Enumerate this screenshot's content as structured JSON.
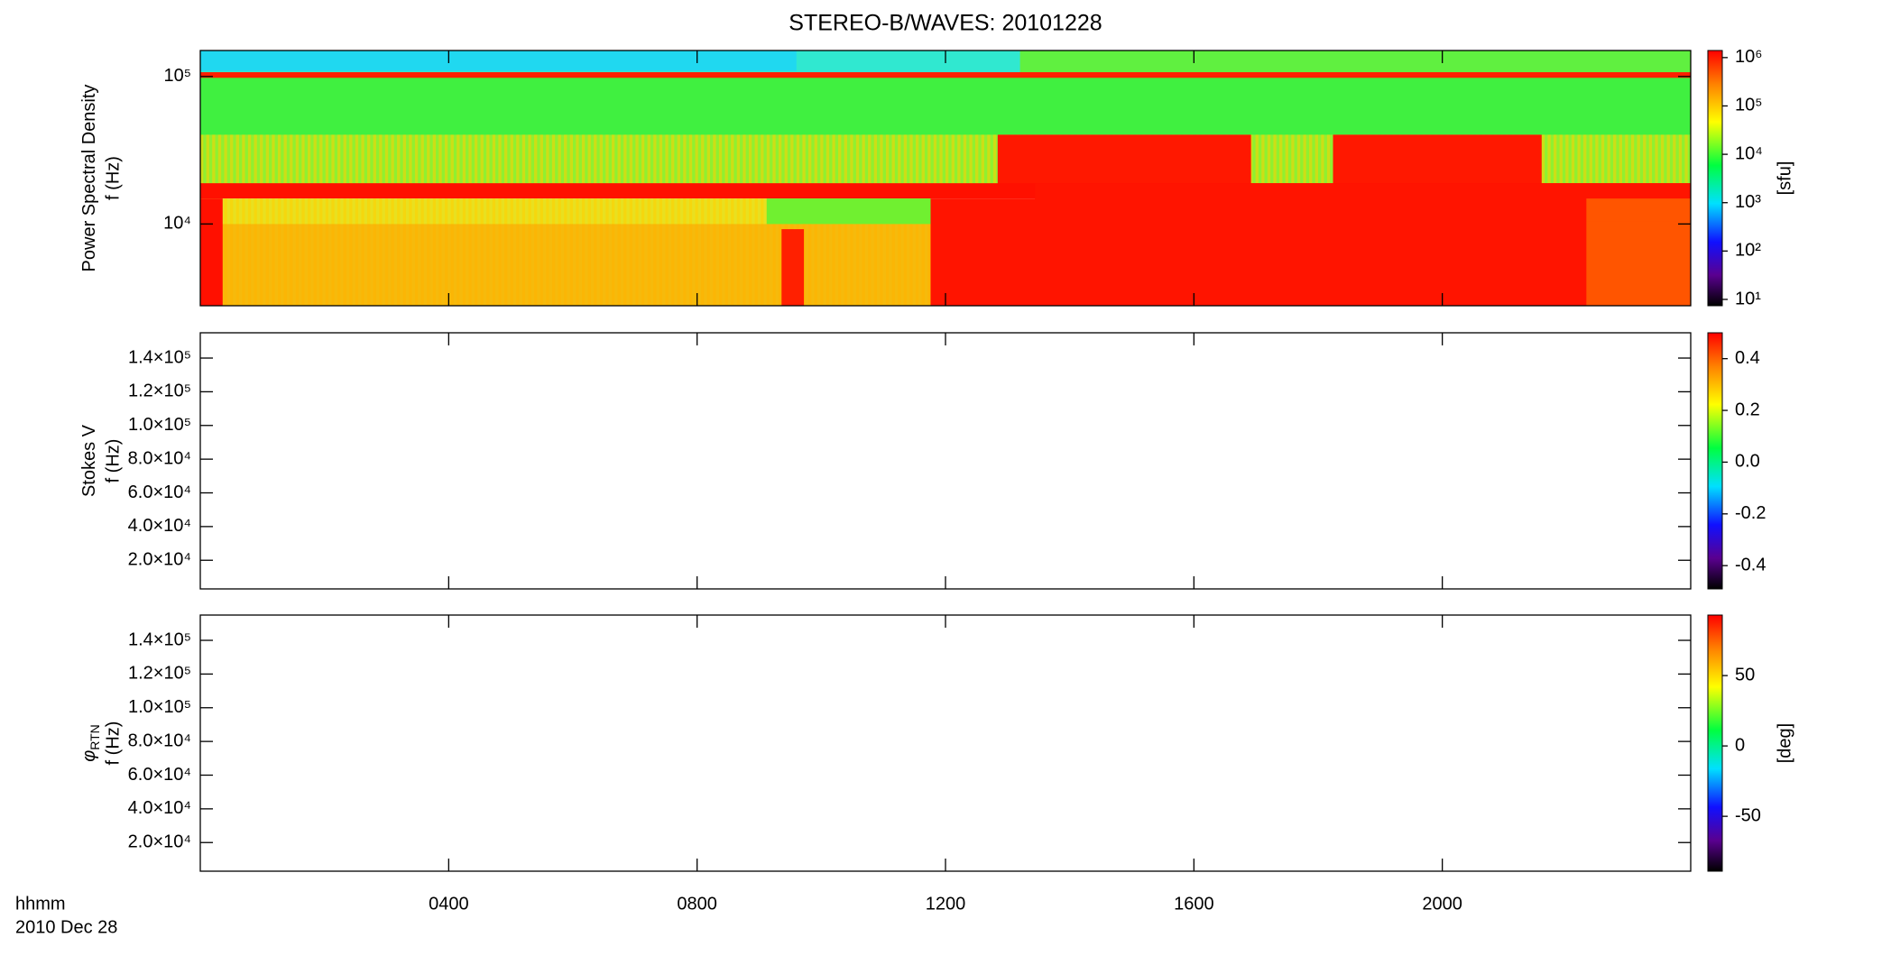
{
  "chart_data": {
    "type": "spectrogram",
    "title": "STEREO-B/WAVES: 20101228",
    "xlim": [
      0,
      24
    ],
    "xticks": [
      {
        "value": 4,
        "label": "0400"
      },
      {
        "value": 8,
        "label": "0800"
      },
      {
        "value": 12,
        "label": "1200"
      },
      {
        "value": 16,
        "label": "1600"
      },
      {
        "value": 20,
        "label": "2000"
      }
    ],
    "xlabel": "hhmm",
    "date": "2010 Dec 28",
    "panels": [
      {
        "ylabel": "Power Spectral Density",
        "ylabel2": "f (Hz)",
        "log_y": true,
        "ylim": [
          2790,
          150000
        ],
        "yticks": [
          {
            "value": 10000,
            "label": "10⁴"
          },
          {
            "value": 100000,
            "label": "10⁵"
          }
        ],
        "colorbar": {
          "log": true,
          "lim": [
            7.4,
            1400000
          ],
          "unit": "[sfu]",
          "ticks": [
            {
              "value": 10,
              "label": "10¹"
            },
            {
              "value": 100,
              "label": "10²"
            },
            {
              "value": 1000,
              "label": "10³"
            },
            {
              "value": 10000,
              "label": "10⁴"
            },
            {
              "value": 100000,
              "label": "10⁵"
            },
            {
              "value": 1000000,
              "label": "10⁶"
            }
          ]
        }
      },
      {
        "ylabel": "Stokes V",
        "ylabel2": "f (Hz)",
        "log_y": false,
        "ylim": [
          3000,
          155000
        ],
        "yticks": [
          {
            "value": 20000,
            "label": "2.0×10⁴"
          },
          {
            "value": 40000,
            "label": "4.0×10⁴"
          },
          {
            "value": 60000,
            "label": "6.0×10⁴"
          },
          {
            "value": 80000,
            "label": "8.0×10⁴"
          },
          {
            "value": 100000,
            "label": "1.0×10⁵"
          },
          {
            "value": 120000,
            "label": "1.2×10⁵"
          },
          {
            "value": 140000,
            "label": "1.4×10⁵"
          }
        ],
        "colorbar": {
          "log": false,
          "lim": [
            -0.49,
            0.5
          ],
          "ticks": [
            -0.4,
            -0.2,
            {
              "value": 0,
              "label": "0.0"
            },
            0.2,
            0.4
          ]
        }
      },
      {
        "ylabel": "φ",
        "ylabel_sub": "RTN",
        "ylabel2": "f (Hz)",
        "log_y": false,
        "ylim": [
          3000,
          155000
        ],
        "yticks": [
          {
            "value": 20000,
            "label": "2.0×10⁴"
          },
          {
            "value": 40000,
            "label": "4.0×10⁴"
          },
          {
            "value": 60000,
            "label": "6.0×10⁴"
          },
          {
            "value": 80000,
            "label": "8.0×10⁴"
          },
          {
            "value": 100000,
            "label": "1.0×10⁵"
          },
          {
            "value": 120000,
            "label": "1.2×10⁵"
          },
          {
            "value": 140000,
            "label": "1.4×10⁵"
          }
        ],
        "colorbar": {
          "log": false,
          "lim": [
            -89,
            93
          ],
          "unit": "[deg]",
          "ticks": [
            -50,
            0,
            50
          ]
        }
      }
    ]
  }
}
